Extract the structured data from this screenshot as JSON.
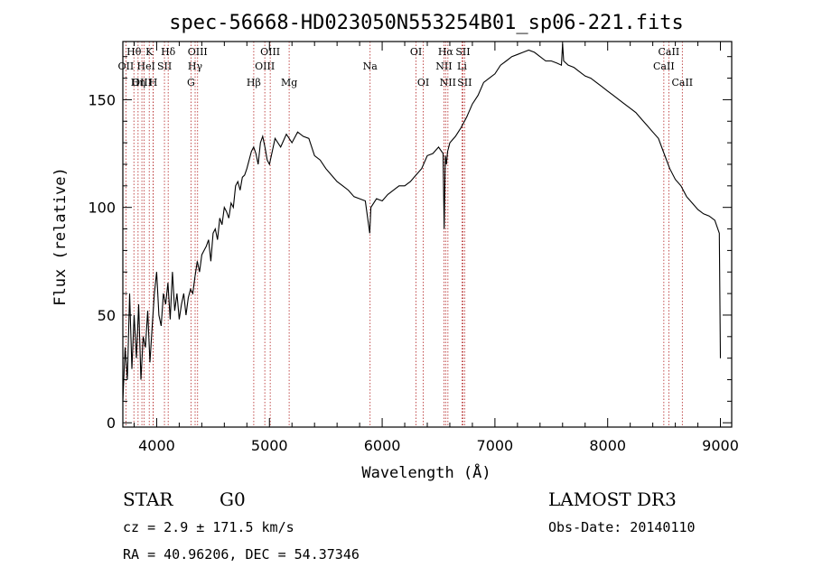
{
  "chart_data": {
    "type": "line",
    "title": "spec-56668-HD023050N553254B01_sp06-221.fits",
    "xlabel": "Wavelength (Å)",
    "ylabel": "Flux (relative)",
    "xlim": [
      3700,
      9100
    ],
    "ylim": [
      -2,
      177
    ],
    "xticks": [
      4000,
      5000,
      6000,
      7000,
      8000,
      9000
    ],
    "yticks": [
      0,
      50,
      100,
      150
    ],
    "grid": false,
    "series": [
      {
        "x": [
          3700,
          3720,
          3740,
          3760,
          3780,
          3800,
          3820,
          3840,
          3860,
          3880,
          3900,
          3920,
          3940,
          3960,
          3980,
          4000,
          4020,
          4040,
          4060,
          4080,
          4100,
          4120,
          4140,
          4160,
          4180,
          4200,
          4220,
          4240,
          4260,
          4280,
          4300,
          4320,
          4340,
          4360,
          4380,
          4400,
          4420,
          4440,
          4460,
          4480,
          4500,
          4520,
          4540,
          4560,
          4580,
          4600,
          4620,
          4640,
          4660,
          4680,
          4700,
          4720,
          4740,
          4760,
          4780,
          4800,
          4820,
          4840,
          4860,
          4880,
          4900,
          4920,
          4940,
          4960,
          4980,
          5000,
          5050,
          5100,
          5150,
          5200,
          5250,
          5300,
          5350,
          5400,
          5450,
          5500,
          5550,
          5600,
          5650,
          5700,
          5750,
          5800,
          5850,
          5890,
          5900,
          5950,
          6000,
          6050,
          6100,
          6150,
          6200,
          6250,
          6300,
          6350,
          6400,
          6450,
          6500,
          6540,
          6550,
          6560,
          6570,
          6580,
          6600,
          6650,
          6700,
          6750,
          6800,
          6850,
          6900,
          6950,
          7000,
          7050,
          7100,
          7150,
          7200,
          7250,
          7300,
          7350,
          7400,
          7450,
          7500,
          7550,
          7590,
          7600,
          7610,
          7650,
          7700,
          7750,
          7800,
          7850,
          7900,
          7950,
          8000,
          8050,
          8100,
          8150,
          8200,
          8250,
          8300,
          8350,
          8400,
          8450,
          8500,
          8550,
          8600,
          8650,
          8700,
          8750,
          8800,
          8850,
          8900,
          8950,
          8990,
          9000
        ],
        "values": [
          10,
          35,
          20,
          60,
          25,
          50,
          30,
          55,
          20,
          40,
          35,
          52,
          28,
          45,
          60,
          70,
          50,
          45,
          60,
          55,
          65,
          48,
          70,
          52,
          60,
          48,
          55,
          60,
          50,
          58,
          62,
          60,
          68,
          75,
          70,
          78,
          80,
          82,
          85,
          75,
          88,
          90,
          85,
          95,
          92,
          100,
          98,
          95,
          102,
          100,
          110,
          112,
          108,
          114,
          115,
          118,
          122,
          126,
          128,
          125,
          120,
          130,
          133,
          128,
          122,
          120,
          132,
          128,
          134,
          130,
          135,
          133,
          132,
          124,
          122,
          118,
          115,
          112,
          110,
          108,
          105,
          104,
          103,
          88,
          100,
          104,
          103,
          106,
          108,
          110,
          110,
          112,
          115,
          118,
          124,
          125,
          128,
          125,
          90,
          124,
          120,
          126,
          130,
          133,
          137,
          142,
          148,
          152,
          158,
          160,
          162,
          166,
          168,
          170,
          171,
          172,
          173,
          172,
          170,
          168,
          168,
          167,
          166,
          176,
          168,
          166,
          165,
          163,
          161,
          160,
          158,
          156,
          154,
          152,
          150,
          148,
          146,
          144,
          141,
          138,
          135,
          132,
          125,
          118,
          113,
          110,
          105,
          102,
          99,
          97,
          96,
          94,
          88,
          30
        ]
      }
    ]
  },
  "lines": [
    {
      "label": "Hθ",
      "wl": 3798,
      "row": 1
    },
    {
      "label": "OII",
      "wl": 3727,
      "row": 2
    },
    {
      "label": "OIII",
      "wl": 3869,
      "row": 3
    },
    {
      "label": "He",
      "wl": 3889,
      "row": 2
    },
    {
      "label": "K",
      "wl": 3934,
      "row": 1
    },
    {
      "label": "Hη",
      "wl": 3835,
      "row": 3
    },
    {
      "label": "I",
      "wl": 3970,
      "row": 2
    },
    {
      "label": "H",
      "wl": 3969,
      "row": 3
    },
    {
      "label": "SII",
      "wl": 4069,
      "row": 2
    },
    {
      "label": "Hδ",
      "wl": 4102,
      "row": 1
    },
    {
      "label": "OIII",
      "wl": 4363,
      "row": 1
    },
    {
      "label": "Hγ",
      "wl": 4341,
      "row": 2
    },
    {
      "label": "G",
      "wl": 4304,
      "row": 3
    },
    {
      "label": "Hβ",
      "wl": 4861,
      "row": 3
    },
    {
      "label": "OIII",
      "wl": 5007,
      "row": 1
    },
    {
      "label": "OIII",
      "wl": 4959,
      "row": 2
    },
    {
      "label": "Mg",
      "wl": 5175,
      "row": 3
    },
    {
      "label": "Na",
      "wl": 5893,
      "row": 2
    },
    {
      "label": "OI",
      "wl": 6300,
      "row": 1
    },
    {
      "label": "OI",
      "wl": 6364,
      "row": 3
    },
    {
      "label": "Hα",
      "wl": 6563,
      "row": 1
    },
    {
      "label": "SII",
      "wl": 6716,
      "row": 1
    },
    {
      "label": "NII",
      "wl": 6548,
      "row": 2
    },
    {
      "label": "Li",
      "wl": 6708,
      "row": 2
    },
    {
      "label": "NII",
      "wl": 6583,
      "row": 3
    },
    {
      "label": "SII",
      "wl": 6731,
      "row": 3
    },
    {
      "label": "CaII",
      "wl": 8542,
      "row": 1
    },
    {
      "label": "CaII",
      "wl": 8498,
      "row": 2
    },
    {
      "label": "CaII",
      "wl": 8662,
      "row": 3
    }
  ],
  "info": {
    "class": "STAR",
    "subclass": "G0",
    "survey": "LAMOST DR3",
    "cz": "cz = 2.9 ± 171.5 km/s",
    "obsdate": "Obs-Date: 20140110",
    "radec": "RA =  40.96206, DEC =  54.37346"
  },
  "colors": {
    "lines": "#b22222",
    "spectrum": "#000000"
  }
}
